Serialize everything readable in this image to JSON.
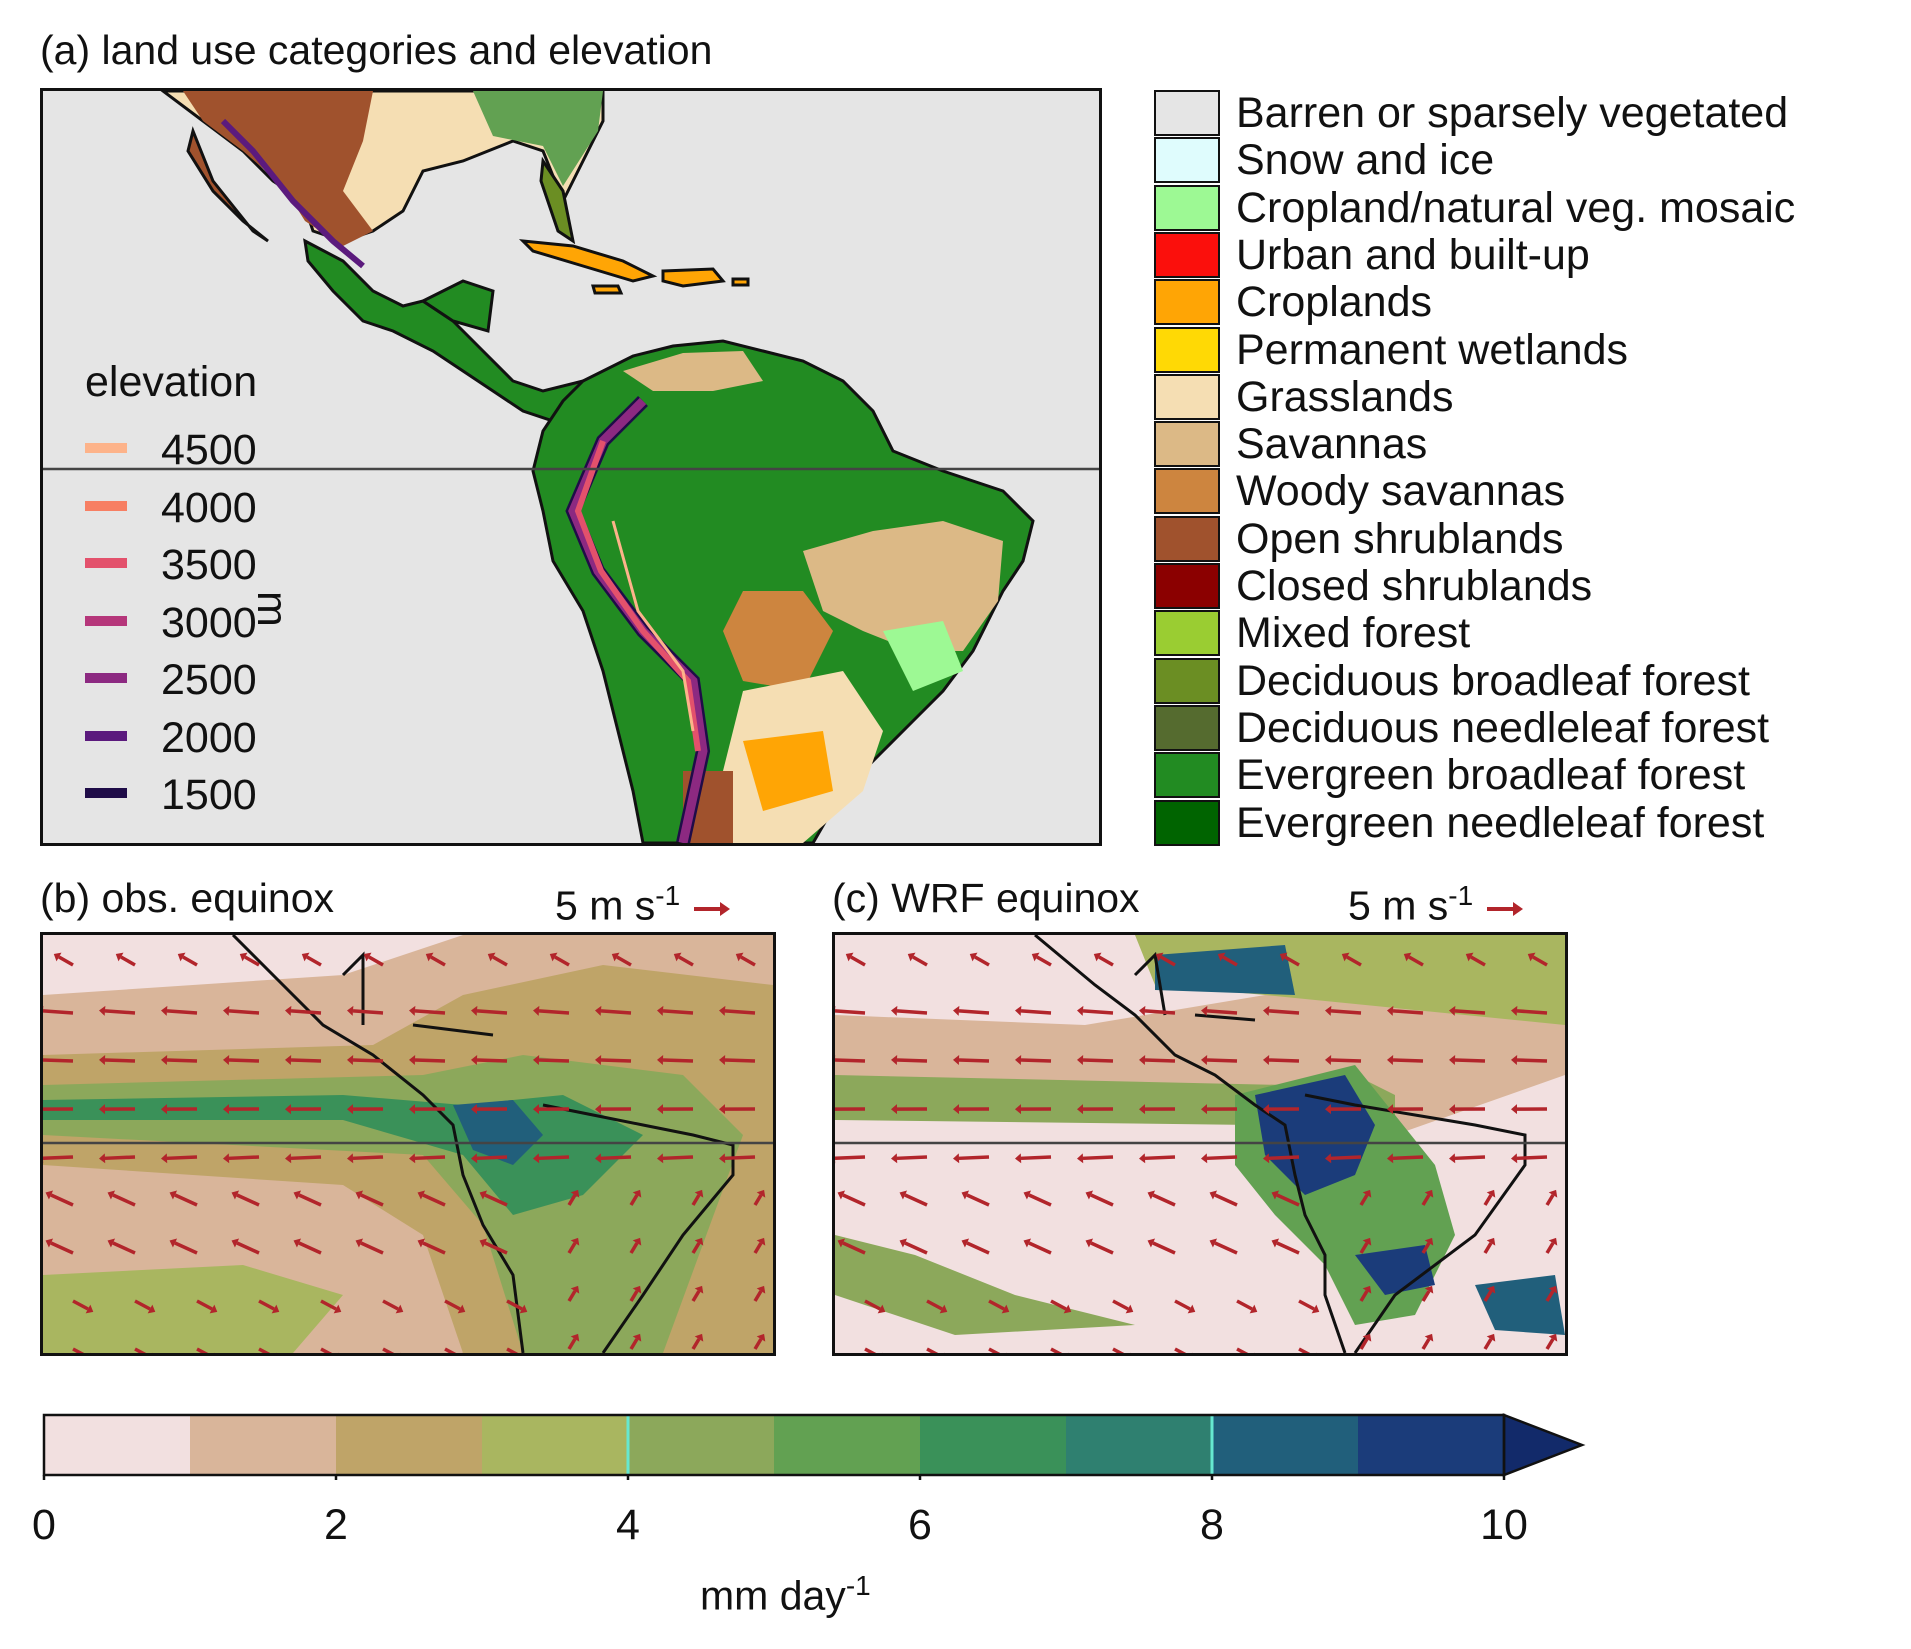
{
  "panels": {
    "a": {
      "title": "(a) land use categories and elevation"
    },
    "b": {
      "title": "(b) obs. equinox",
      "ref_vector": "5 m s",
      "ref_exp": "-1"
    },
    "c": {
      "title": "(c) WRF equinox",
      "ref_vector": "5 m s",
      "ref_exp": "-1"
    }
  },
  "elevation_legend": {
    "title": "elevation",
    "unit": "m",
    "levels": [
      {
        "value": "4500",
        "color": "#fdb38a"
      },
      {
        "value": "4000",
        "color": "#f77f63"
      },
      {
        "value": "3500",
        "color": "#e3516c"
      },
      {
        "value": "3000",
        "color": "#b5367a"
      },
      {
        "value": "2500",
        "color": "#8c2981"
      },
      {
        "value": "2000",
        "color": "#5b1a7d"
      },
      {
        "value": "1500",
        "color": "#1f0c48"
      }
    ]
  },
  "land_use_legend": [
    {
      "label": "Barren or sparsely vegetated",
      "color": "#e5e5e5"
    },
    {
      "label": "Snow and ice",
      "color": "#dffcfd"
    },
    {
      "label": "Cropland/natural veg. mosaic",
      "color": "#9df994"
    },
    {
      "label": "Urban and built-up",
      "color": "#fb0f0c"
    },
    {
      "label": "Croplands",
      "color": "#ffa505"
    },
    {
      "label": "Permanent wetlands",
      "color": "#ffd905"
    },
    {
      "label": "Grasslands",
      "color": "#f5deb3"
    },
    {
      "label": "Savannas",
      "color": "#dcb986"
    },
    {
      "label": "Woody savannas",
      "color": "#cd853f"
    },
    {
      "label": "Open shrublands",
      "color": "#a0522d"
    },
    {
      "label": "Closed shrublands",
      "color": "#8b0000"
    },
    {
      "label": "Mixed forest",
      "color": "#9acd32"
    },
    {
      "label": "Deciduous broadleaf forest",
      "color": "#6b8e23"
    },
    {
      "label": "Deciduous needleleaf forest",
      "color": "#556b2f"
    },
    {
      "label": "Evergreen broadleaf forest",
      "color": "#228b22"
    },
    {
      "label": "Evergreen needleleaf forest",
      "color": "#006400"
    }
  ],
  "colorbar": {
    "label": "mm day",
    "label_exp": "-1",
    "ticks": [
      "0",
      "2",
      "4",
      "6",
      "8",
      "10"
    ],
    "bounds": [
      0,
      1,
      2,
      3,
      4,
      5,
      6,
      7,
      8,
      9,
      10
    ],
    "colors": [
      "#f2e0e0",
      "#d9b59a",
      "#bfa468",
      "#a9b660",
      "#8ca85b",
      "#62a152",
      "#3a9159",
      "#2f8070",
      "#215f7b",
      "#1b3c7a"
    ],
    "extend_color": "#122a6a",
    "contour_lines_at": [
      4,
      8
    ],
    "contour_color": "#66e8d0"
  },
  "colors": {
    "ocean": "#e5e5e5",
    "coast": "#111111",
    "equator": "#444444",
    "wind_vector": "#b2252b",
    "forest": "#228b22",
    "savanna": "#dcb986",
    "grass": "#f5deb3",
    "shrub": "#a0522d",
    "crop": "#ffa505"
  }
}
